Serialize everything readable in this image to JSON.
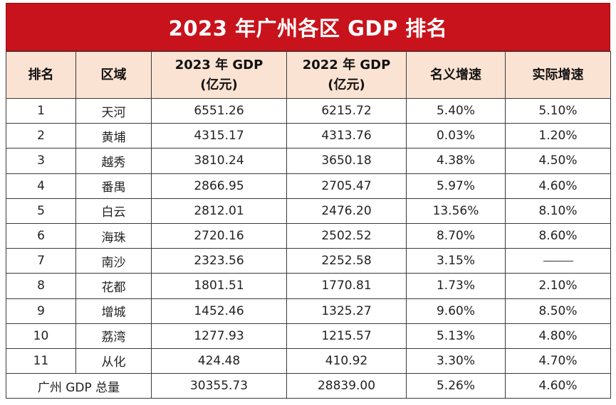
{
  "title": "2023 年广州各区 GDP 排名",
  "headers": {
    "rank": "排名",
    "district": "区域",
    "gdp2023_l1": "2023 年 GDP",
    "gdp2023_l2": "(亿元)",
    "gdp2022_l1": "2022 年 GDP",
    "gdp2022_l2": "(亿元)",
    "nominal": "名义增速",
    "real": "实际增速"
  },
  "rows": [
    {
      "rank": "1",
      "district": "天河",
      "gdp2023": "6551.26",
      "gdp2022": "6215.72",
      "nominal": "5.40%",
      "real": "5.10%"
    },
    {
      "rank": "2",
      "district": "黄埔",
      "gdp2023": "4315.17",
      "gdp2022": "4313.76",
      "nominal": "0.03%",
      "real": "1.20%"
    },
    {
      "rank": "3",
      "district": "越秀",
      "gdp2023": "3810.24",
      "gdp2022": "3650.18",
      "nominal": "4.38%",
      "real": "4.50%"
    },
    {
      "rank": "4",
      "district": "番禺",
      "gdp2023": "2866.95",
      "gdp2022": "2705.47",
      "nominal": "5.97%",
      "real": "4.60%"
    },
    {
      "rank": "5",
      "district": "白云",
      "gdp2023": "2812.01",
      "gdp2022": "2476.20",
      "nominal": "13.56%",
      "real": "8.10%"
    },
    {
      "rank": "6",
      "district": "海珠",
      "gdp2023": "2720.16",
      "gdp2022": "2502.52",
      "nominal": "8.70%",
      "real": "8.60%"
    },
    {
      "rank": "7",
      "district": "南沙",
      "gdp2023": "2323.56",
      "gdp2022": "2252.58",
      "nominal": "3.15%",
      "real": ""
    },
    {
      "rank": "8",
      "district": "花都",
      "gdp2023": "1801.51",
      "gdp2022": "1770.81",
      "nominal": "1.73%",
      "real": "2.10%"
    },
    {
      "rank": "9",
      "district": "增城",
      "gdp2023": "1452.46",
      "gdp2022": "1325.27",
      "nominal": "9.60%",
      "real": "8.50%"
    },
    {
      "rank": "10",
      "district": "荔湾",
      "gdp2023": "1277.93",
      "gdp2022": "1215.57",
      "nominal": "5.13%",
      "real": "4.80%"
    },
    {
      "rank": "11",
      "district": "从化",
      "gdp2023": "424.48",
      "gdp2022": "410.92",
      "nominal": "3.30%",
      "real": "4.70%"
    }
  ],
  "total": {
    "label": "广州 GDP 总量",
    "gdp2023": "30355.73",
    "gdp2022": "28839.00",
    "nominal": "5.26%",
    "real": "4.60%"
  }
}
